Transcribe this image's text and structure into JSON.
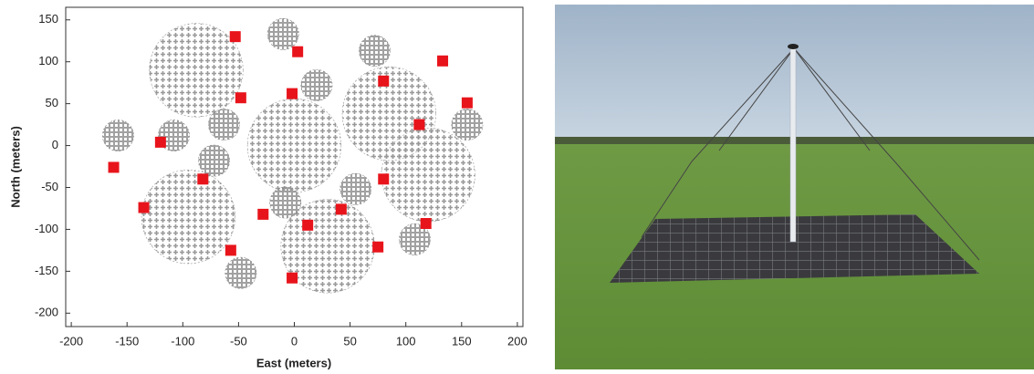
{
  "chart_data": {
    "type": "scatter",
    "xlabel": "East (meters)",
    "ylabel": "North (meters)",
    "xlim": [
      -205,
      205
    ],
    "ylim": [
      -216,
      165
    ],
    "xticks": [
      -200,
      -150,
      -100,
      -50,
      0,
      50,
      100,
      150,
      200
    ],
    "yticks": [
      -200,
      -150,
      -100,
      -50,
      0,
      50,
      100,
      150
    ],
    "series": [
      {
        "marker": "cross-cluster",
        "color": "#999999",
        "x": [
          -88,
          0,
          85,
          120,
          -95,
          30
        ],
        "values": [
          90,
          0,
          38,
          -35,
          -85,
          -120
        ],
        "sizes": [
          42,
          42,
          42,
          42,
          42,
          42
        ]
      },
      {
        "marker": "tile-cluster",
        "color": "#8a8a8a",
        "x": [
          -10,
          72,
          20,
          -63,
          -158,
          -108,
          -72,
          -8,
          55,
          155,
          108,
          -48
        ],
        "values": [
          133,
          113,
          72,
          25,
          12,
          12,
          -18,
          -68,
          -52,
          25,
          -112,
          -152
        ],
        "sizes": [
          14,
          14,
          14,
          14,
          14,
          14,
          14,
          14,
          14,
          14,
          14,
          14
        ]
      },
      {
        "marker": "square",
        "color": "#e8141b",
        "x": [
          -53,
          3,
          -48,
          -2,
          80,
          133,
          155,
          112,
          -120,
          -162,
          -82,
          -135,
          -28,
          80,
          42,
          12,
          118,
          75,
          -57,
          -2
        ],
        "values": [
          130,
          112,
          57,
          62,
          77,
          101,
          51,
          25,
          4,
          -26,
          -40,
          -74,
          -82,
          -40,
          -76,
          -95,
          -93,
          -121,
          -125,
          -158
        ]
      }
    ]
  }
}
